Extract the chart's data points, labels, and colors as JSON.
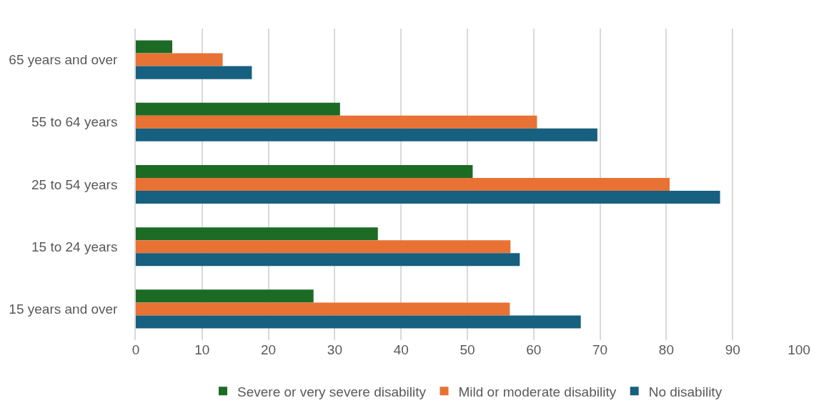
{
  "chart_data": {
    "type": "bar",
    "orientation": "horizontal",
    "categories": [
      "65 years and over",
      "55 to 64 years",
      "25 to 54 years",
      "15 to 24 years",
      "15 years and over"
    ],
    "series": [
      {
        "name": "Severe or very severe disability",
        "color": "#1c6b25",
        "values": [
          5.5,
          30.8,
          50.8,
          36.5,
          26.8
        ]
      },
      {
        "name": "Mild or moderate disability",
        "color": "#e87234",
        "values": [
          13.1,
          60.5,
          80.5,
          56.5,
          56.4
        ]
      },
      {
        "name": "No disability",
        "color": "#17607f",
        "values": [
          17.5,
          69.6,
          88.1,
          57.9,
          67.1
        ]
      }
    ],
    "xlim": [
      0,
      100
    ],
    "xticks": [
      0,
      10,
      20,
      30,
      40,
      50,
      60,
      70,
      80,
      90,
      100
    ],
    "grid": "x",
    "legend": "bottom"
  }
}
